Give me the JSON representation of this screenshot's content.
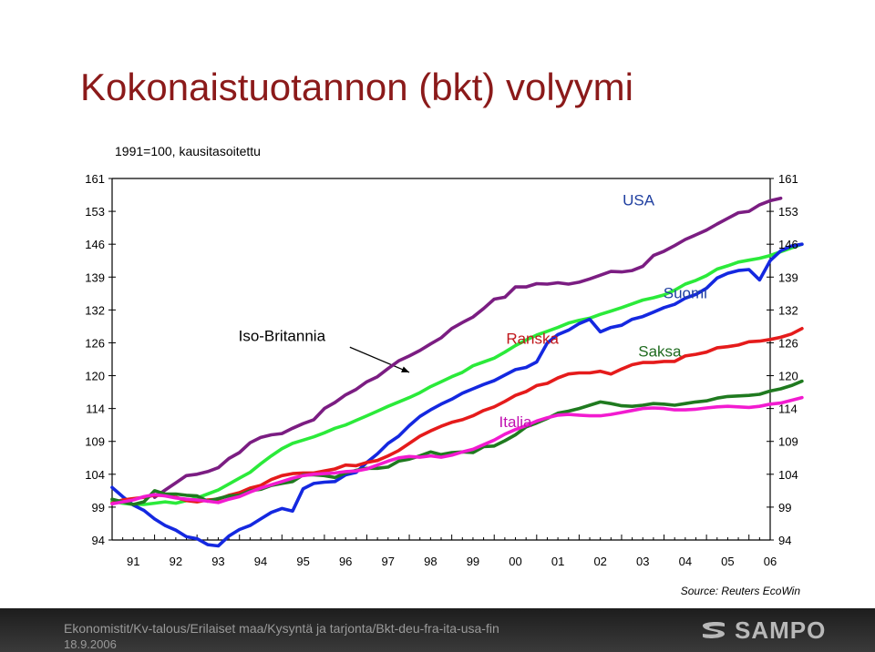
{
  "title": "Kokonaistuotannon (bkt) volyymi",
  "source": "Source: Reuters EcoWin",
  "footer": {
    "path": "Ekonomistit/Kv-talous/Erilaiset maa/Kysyntä ja tarjonta/Bkt-deu-fra-ita-usa-fin",
    "date": "18.9.2006",
    "logo": "SAMPO"
  },
  "chart_data": {
    "type": "line",
    "title": "Kokonaistuotannon (bkt) volyymi",
    "subtitle": "1991=100, kausitasoitettu",
    "y_ticks": [
      94,
      99,
      104,
      109,
      114,
      120,
      126,
      132,
      139,
      146,
      153,
      161
    ],
    "x_ticks": [
      "91",
      "92",
      "93",
      "94",
      "95",
      "96",
      "97",
      "98",
      "99",
      "00",
      "01",
      "02",
      "03",
      "04",
      "05",
      "06"
    ],
    "x_range": [
      1991.0,
      2006.5
    ],
    "annotations": [
      {
        "text": "USA",
        "series": "USA",
        "x": 2003.4,
        "y": 154.5
      },
      {
        "text": "Suomi",
        "series": "Suomi",
        "x": 2004.5,
        "y": 134.5
      },
      {
        "text": "Iso-Britannia",
        "series": "Iso-Britannia",
        "x": 1995.0,
        "y": 126.3
      },
      {
        "text": "Ranska",
        "series": "Ranska",
        "x": 2000.9,
        "y": 125.8
      },
      {
        "text": "Saksa",
        "series": "Saksa",
        "x": 2003.9,
        "y": 123.5
      },
      {
        "text": "Italia",
        "series": "Italia",
        "x": 2000.5,
        "y": 111.2
      }
    ],
    "series": [
      {
        "name": "USA",
        "color": "#7b1d82",
        "start": 1992.0,
        "step": 0.25,
        "values": [
          100.5,
          101.6,
          102.7,
          103.8,
          104.0,
          104.4,
          105.0,
          106.4,
          107.3,
          108.8,
          109.6,
          110.0,
          110.2,
          111.0,
          111.7,
          112.3,
          114.0,
          115.1,
          116.5,
          117.5,
          118.9,
          119.8,
          121.3,
          122.7,
          123.6,
          124.6,
          125.8,
          126.9,
          128.6,
          129.7,
          130.7,
          132.3,
          134.3,
          134.7,
          136.9,
          136.9,
          137.6,
          137.5,
          137.8,
          137.5,
          137.9,
          138.6,
          139.4,
          140.2,
          140.1,
          140.4,
          141.3,
          143.6,
          144.5,
          145.7,
          147.0,
          148.0,
          149.0,
          150.3,
          151.5,
          152.7,
          153.0,
          154.6,
          155.6,
          156.2
        ]
      },
      {
        "name": "Iso-Britannia",
        "color": "#2bea3a",
        "start": 1991.0,
        "step": 0.25,
        "values": [
          99.9,
          99.6,
          99.4,
          99.4,
          99.6,
          99.8,
          99.6,
          100.0,
          100.4,
          101.0,
          101.6,
          102.5,
          103.4,
          104.3,
          105.6,
          106.8,
          107.9,
          108.7,
          109.2,
          109.7,
          110.3,
          111.0,
          111.5,
          112.2,
          112.9,
          113.6,
          114.4,
          115.2,
          116.0,
          116.9,
          118.0,
          118.9,
          119.8,
          120.6,
          121.8,
          122.5,
          123.2,
          124.3,
          125.5,
          126.5,
          127.4,
          128.1,
          128.8,
          129.6,
          130.1,
          130.5,
          131.2,
          131.8,
          132.5,
          133.3,
          134.1,
          134.6,
          135.2,
          136.2,
          137.5,
          138.3,
          139.3,
          140.7,
          141.4,
          142.2,
          142.6,
          143.0,
          143.6,
          144.4,
          145.2,
          146.0
        ]
      },
      {
        "name": "Suomi",
        "color": "#1428e0",
        "start": 1991.0,
        "step": 0.25,
        "values": [
          102.0,
          100.6,
          99.3,
          98.5,
          97.2,
          96.2,
          95.5,
          94.5,
          94.2,
          93.3,
          93.1,
          94.6,
          95.6,
          96.2,
          97.2,
          98.2,
          98.8,
          98.4,
          101.8,
          102.6,
          102.8,
          102.9,
          103.9,
          104.3,
          105.8,
          107.1,
          108.7,
          109.8,
          111.4,
          112.8,
          113.8,
          114.8,
          115.7,
          116.8,
          117.6,
          118.4,
          119.1,
          120.1,
          121.1,
          121.5,
          122.5,
          126.0,
          127.5,
          128.3,
          129.5,
          130.3,
          128.0,
          128.8,
          129.2,
          130.3,
          130.8,
          131.6,
          132.5,
          133.2,
          134.5,
          135.3,
          136.6,
          138.8,
          139.8,
          140.4,
          140.6,
          138.4,
          142.5,
          144.6,
          145.6,
          146.0
        ]
      },
      {
        "name": "Ranska",
        "color": "#e51b1b",
        "start": 1991.0,
        "step": 0.25,
        "values": [
          99.6,
          100.1,
          100.3,
          100.5,
          100.8,
          100.8,
          100.5,
          100.0,
          99.8,
          100.1,
          100.2,
          100.8,
          101.2,
          101.9,
          102.3,
          103.2,
          103.8,
          104.1,
          104.2,
          104.2,
          104.5,
          104.8,
          105.4,
          105.3,
          105.8,
          106.1,
          106.8,
          107.6,
          108.7,
          109.8,
          110.6,
          111.3,
          111.9,
          112.3,
          112.9,
          113.7,
          114.3,
          115.3,
          116.4,
          117.1,
          118.2,
          118.6,
          119.6,
          120.3,
          120.5,
          120.5,
          120.8,
          120.3,
          121.2,
          122.0,
          122.4,
          122.4,
          122.6,
          122.6,
          123.6,
          123.9,
          124.3,
          125.1,
          125.3,
          125.6,
          126.2,
          126.3,
          126.6,
          127.0,
          127.6,
          128.6
        ]
      },
      {
        "name": "Saksa",
        "color": "#1f7a1f",
        "start": 1991.0,
        "step": 0.25,
        "values": [
          100.2,
          99.8,
          99.4,
          99.8,
          101.5,
          101.0,
          101.0,
          100.8,
          100.7,
          99.9,
          100.3,
          100.7,
          100.8,
          101.5,
          101.7,
          102.3,
          102.6,
          102.9,
          103.9,
          103.9,
          103.8,
          103.5,
          104.2,
          104.6,
          104.9,
          104.9,
          105.1,
          106.0,
          106.3,
          106.8,
          107.4,
          107.0,
          107.3,
          107.4,
          107.3,
          108.2,
          108.3,
          109.1,
          110.0,
          111.2,
          111.8,
          112.5,
          113.3,
          113.6,
          114.0,
          114.6,
          115.2,
          114.9,
          114.5,
          114.4,
          114.6,
          114.9,
          114.8,
          114.6,
          114.9,
          115.2,
          115.4,
          115.9,
          116.2,
          116.3,
          116.4,
          116.6,
          117.2,
          117.6,
          118.2,
          119.0
        ]
      },
      {
        "name": "Italia",
        "color": "#f21bd0",
        "start": 1991.0,
        "step": 0.25,
        "values": [
          99.5,
          99.8,
          100.1,
          100.6,
          100.9,
          100.7,
          100.4,
          100.2,
          100.1,
          99.9,
          99.7,
          100.2,
          100.6,
          101.3,
          101.9,
          102.4,
          102.9,
          103.4,
          103.8,
          104.0,
          104.1,
          104.2,
          104.4,
          104.5,
          104.8,
          105.4,
          106.0,
          106.5,
          106.7,
          106.6,
          106.8,
          106.6,
          106.9,
          107.4,
          107.8,
          108.5,
          109.2,
          110.1,
          110.8,
          111.4,
          112.1,
          112.6,
          113.0,
          113.1,
          113.0,
          112.9,
          112.9,
          113.1,
          113.4,
          113.7,
          114.0,
          114.1,
          114.0,
          113.8,
          113.8,
          113.9,
          114.1,
          114.3,
          114.4,
          114.3,
          114.2,
          114.4,
          114.8,
          115.0,
          115.5,
          116.0
        ]
      }
    ]
  }
}
